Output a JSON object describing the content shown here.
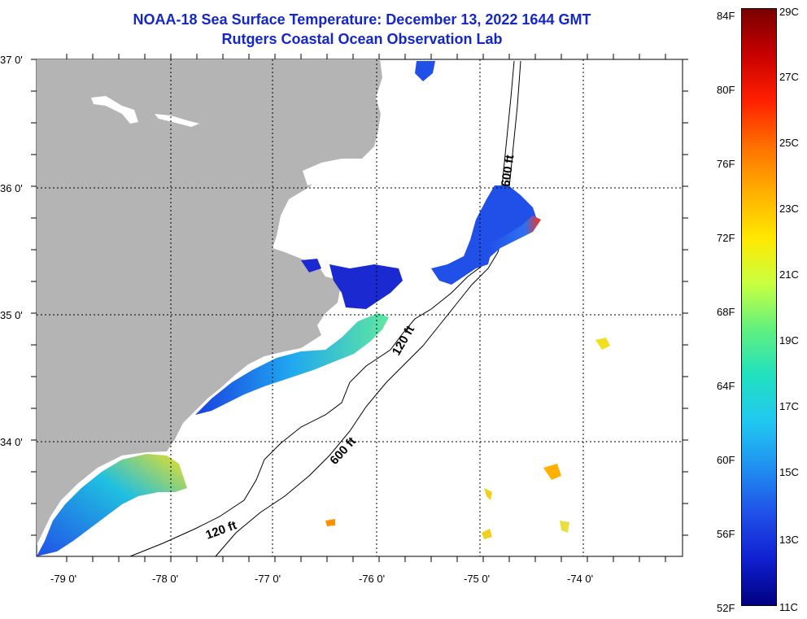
{
  "title": "NOAA-18 Sea Surface Temperature:  December 13, 2022 1644 GMT",
  "subtitle": "Rutgers Coastal Ocean Observation Lab",
  "latitude_labels": [
    "37 0'",
    "36 0'",
    "35 0'",
    "34 0'"
  ],
  "longitude_labels": [
    "-79 0'",
    "-78 0'",
    "-77 0'",
    "-76 0'",
    "-75 0'",
    "-74 0'"
  ],
  "contour_labels": [
    "600 ft",
    "120 ft",
    "600 ft",
    "120 ft"
  ],
  "colorbar": {
    "fahrenheit_labels": [
      "84F",
      "80F",
      "76F",
      "72F",
      "68F",
      "64F",
      "60F",
      "56F",
      "52F"
    ],
    "celsius_labels": [
      "29C",
      "27C",
      "25C",
      "23C",
      "21C",
      "19C",
      "17C",
      "15C",
      "13C",
      "11C"
    ],
    "colors": [
      "#7a0000",
      "#c80000",
      "#ff2000",
      "#ff7000",
      "#ffb000",
      "#ffe800",
      "#c8ff40",
      "#60f080",
      "#20e0c0",
      "#20c8f0",
      "#2090f0",
      "#2050e8",
      "#1020d0",
      "#000080"
    ]
  },
  "colors": {
    "land": "#b4b4b4",
    "title": "#1428c8",
    "grid": "#000000"
  }
}
